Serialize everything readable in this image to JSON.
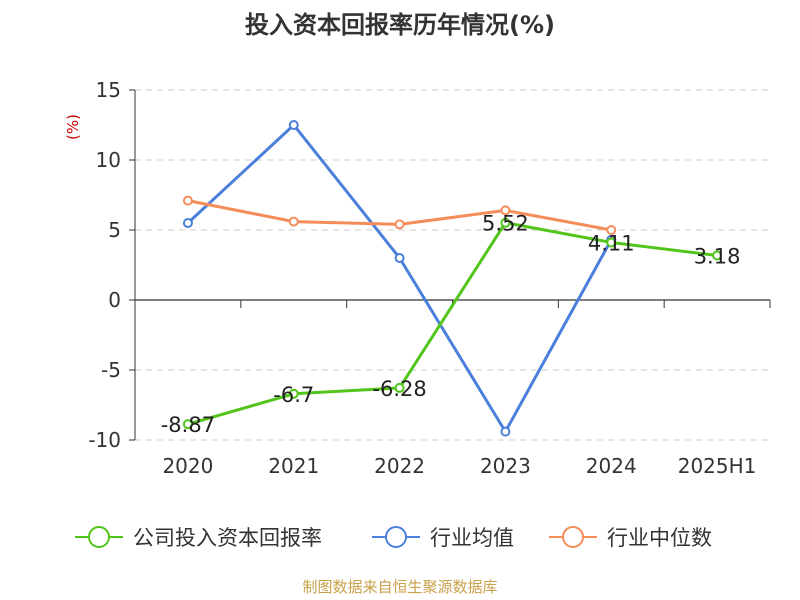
{
  "chart_data": {
    "type": "line",
    "title": "投入资本回报率历年情况(%)",
    "y_unit": "(%)",
    "categories": [
      "2020",
      "2021",
      "2022",
      "2023",
      "2024",
      "2025H1"
    ],
    "ylim": [
      -10,
      15
    ],
    "yticks": [
      15,
      10,
      5,
      0,
      -5,
      -10
    ],
    "grid": true,
    "legend_position": "bottom",
    "series": [
      {
        "name": "公司投入资本回报率",
        "color": "#52c41a",
        "values": [
          -8.87,
          -6.7,
          -6.28,
          5.52,
          4.11,
          3.18
        ],
        "labels": [
          "-8.87",
          "-6.7",
          "-6.28",
          "5.52",
          "4.11",
          "3.18"
        ]
      },
      {
        "name": "行业均值",
        "color": "#4a7fdc",
        "values": [
          5.5,
          12.5,
          3.0,
          -9.4,
          4.3,
          null
        ]
      },
      {
        "name": "行业中位数",
        "color": "#f58c5a",
        "values": [
          7.1,
          5.6,
          5.4,
          6.4,
          5.0,
          null
        ]
      }
    ],
    "source": "制图数据来自恒生聚源数据库"
  }
}
